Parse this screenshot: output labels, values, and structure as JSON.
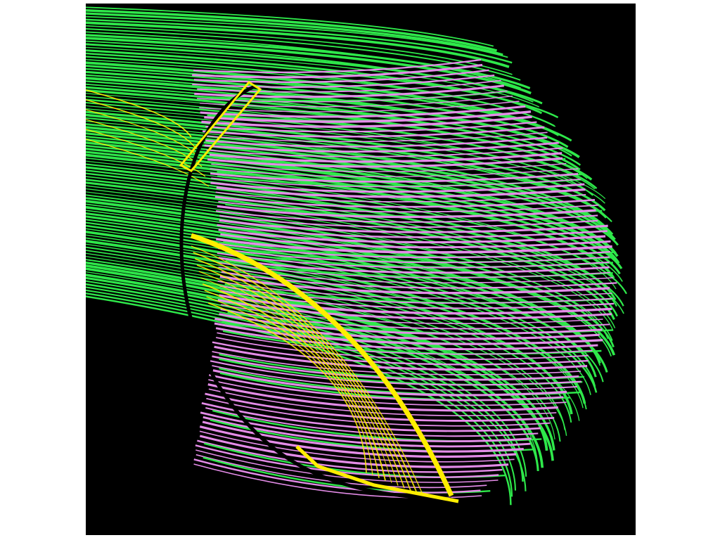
{
  "figure": {
    "background_color": "#000000",
    "page_color": "#ffffff",
    "colors": {
      "outer_bundle": "#2ee84a",
      "inner_bundle": "#e48ce8",
      "highlight": "#ffee00"
    },
    "layers": [
      "outer-green-fibers",
      "inner-violet-fibers",
      "yellow-highlight-fibers"
    ]
  }
}
